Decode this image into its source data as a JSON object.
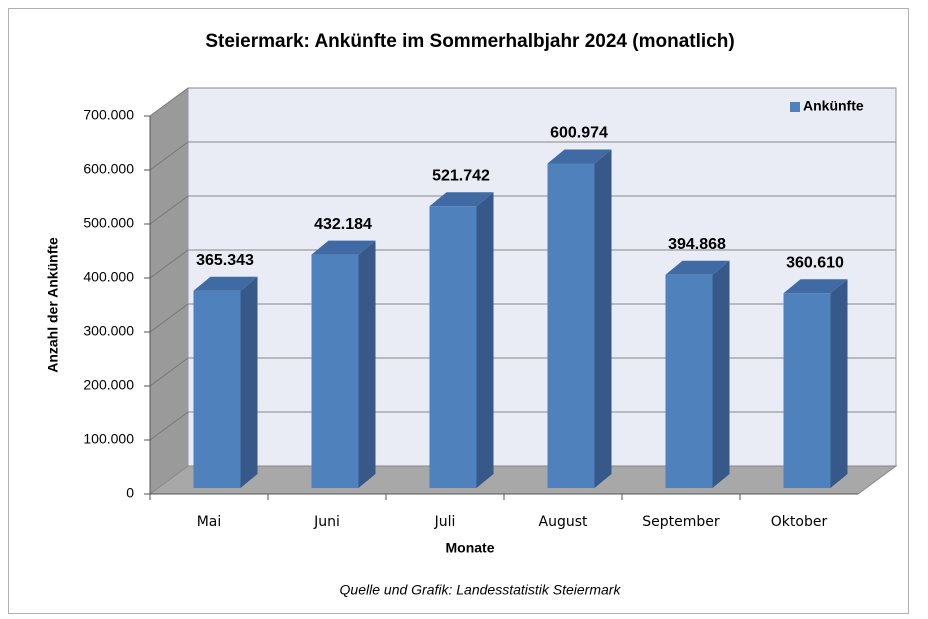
{
  "chart_data": {
    "type": "bar3d",
    "title": "Steiermark: Ankünfte im Sommerhalbjahr 2024 (monatlich)",
    "x_label": "Monate",
    "y_label": "Anzahl der Ankünfte",
    "source": "Quelle und Grafik: Landesstatistik Steiermark",
    "categories": [
      "Mai",
      "Juni",
      "Juli",
      "August",
      "September",
      "Oktober"
    ],
    "series": [
      {
        "name": "Ankünfte",
        "color": "#4f81bd",
        "values": [
          365343,
          432184,
          521742,
          600974,
          394868,
          360610
        ],
        "value_labels": [
          "365.343",
          "432.184",
          "521.742",
          "600.974",
          "394.868",
          "360.610"
        ]
      }
    ],
    "ylim": [
      0,
      700000
    ],
    "yticks": [
      0,
      {
        "value": 100000,
        "label": "100.000"
      },
      {
        "value": 200000,
        "label": "200.000"
      },
      {
        "value": 300000,
        "label": "300.000"
      },
      {
        "value": 400000,
        "label": "400.000"
      },
      {
        "value": 500000,
        "label": "500.000"
      },
      {
        "value": 600000,
        "label": "600.000"
      },
      {
        "value": 700000,
        "label": "700.000"
      }
    ],
    "grid": true,
    "legend": "top-right"
  }
}
